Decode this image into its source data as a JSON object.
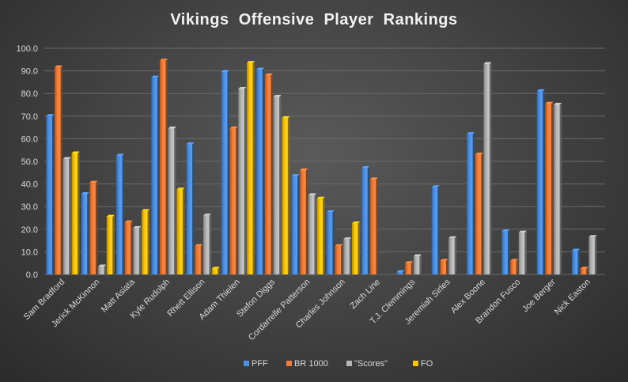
{
  "chart_data": {
    "type": "bar",
    "title": "Vikings  Offensive  Player  Rankings",
    "xlabel": "",
    "ylabel": "",
    "ylim": [
      0,
      100
    ],
    "yticks": [
      "0.0",
      "10.0",
      "20.0",
      "30.0",
      "40.0",
      "50.0",
      "60.0",
      "70.0",
      "80.0",
      "90.0",
      "100.0"
    ],
    "grid": true,
    "legend_position": "bottom",
    "categories": [
      "Sam Bradford",
      "Jerick McKinnon",
      "Matt Asiata",
      "Kyle Rudolph",
      "Rhett Ellison",
      "Adam Thielen",
      "Stefon Diggs",
      "Cordarrelle Patterson",
      "Charles Johnson",
      "Zach Line",
      "T.J. Clemmings",
      "Jeremiah Sirles",
      "Alex Boone",
      "Brandon Fusco",
      "Joe Berger",
      "Nick Easton"
    ],
    "series": [
      {
        "name": "PFF",
        "color": "#4f8fe0",
        "values": [
          70,
          35.5,
          52.5,
          87,
          57.5,
          89.5,
          90.5,
          43.5,
          27.5,
          47,
          1,
          38.5,
          62,
          19,
          81,
          10.5
        ]
      },
      {
        "name": "BR 1000",
        "color": "#f07c3a",
        "values": [
          91.5,
          40.5,
          23,
          94.5,
          12.5,
          64.5,
          88,
          46,
          12.5,
          42,
          5,
          6,
          53,
          6,
          75.5,
          2.5
        ]
      },
      {
        "name": "\"Scores\"",
        "color": "#b4b4b4",
        "values": [
          51,
          3.5,
          20.5,
          64.5,
          26,
          82,
          78.5,
          35,
          15.5,
          null,
          8,
          16,
          93,
          18.5,
          75,
          16.5
        ]
      },
      {
        "name": "FO",
        "color": "#f8c313",
        "values": [
          53.5,
          25.5,
          28,
          37.5,
          2.5,
          93.5,
          69,
          33.5,
          22.5,
          null,
          null,
          null,
          null,
          null,
          null,
          null
        ]
      }
    ]
  }
}
